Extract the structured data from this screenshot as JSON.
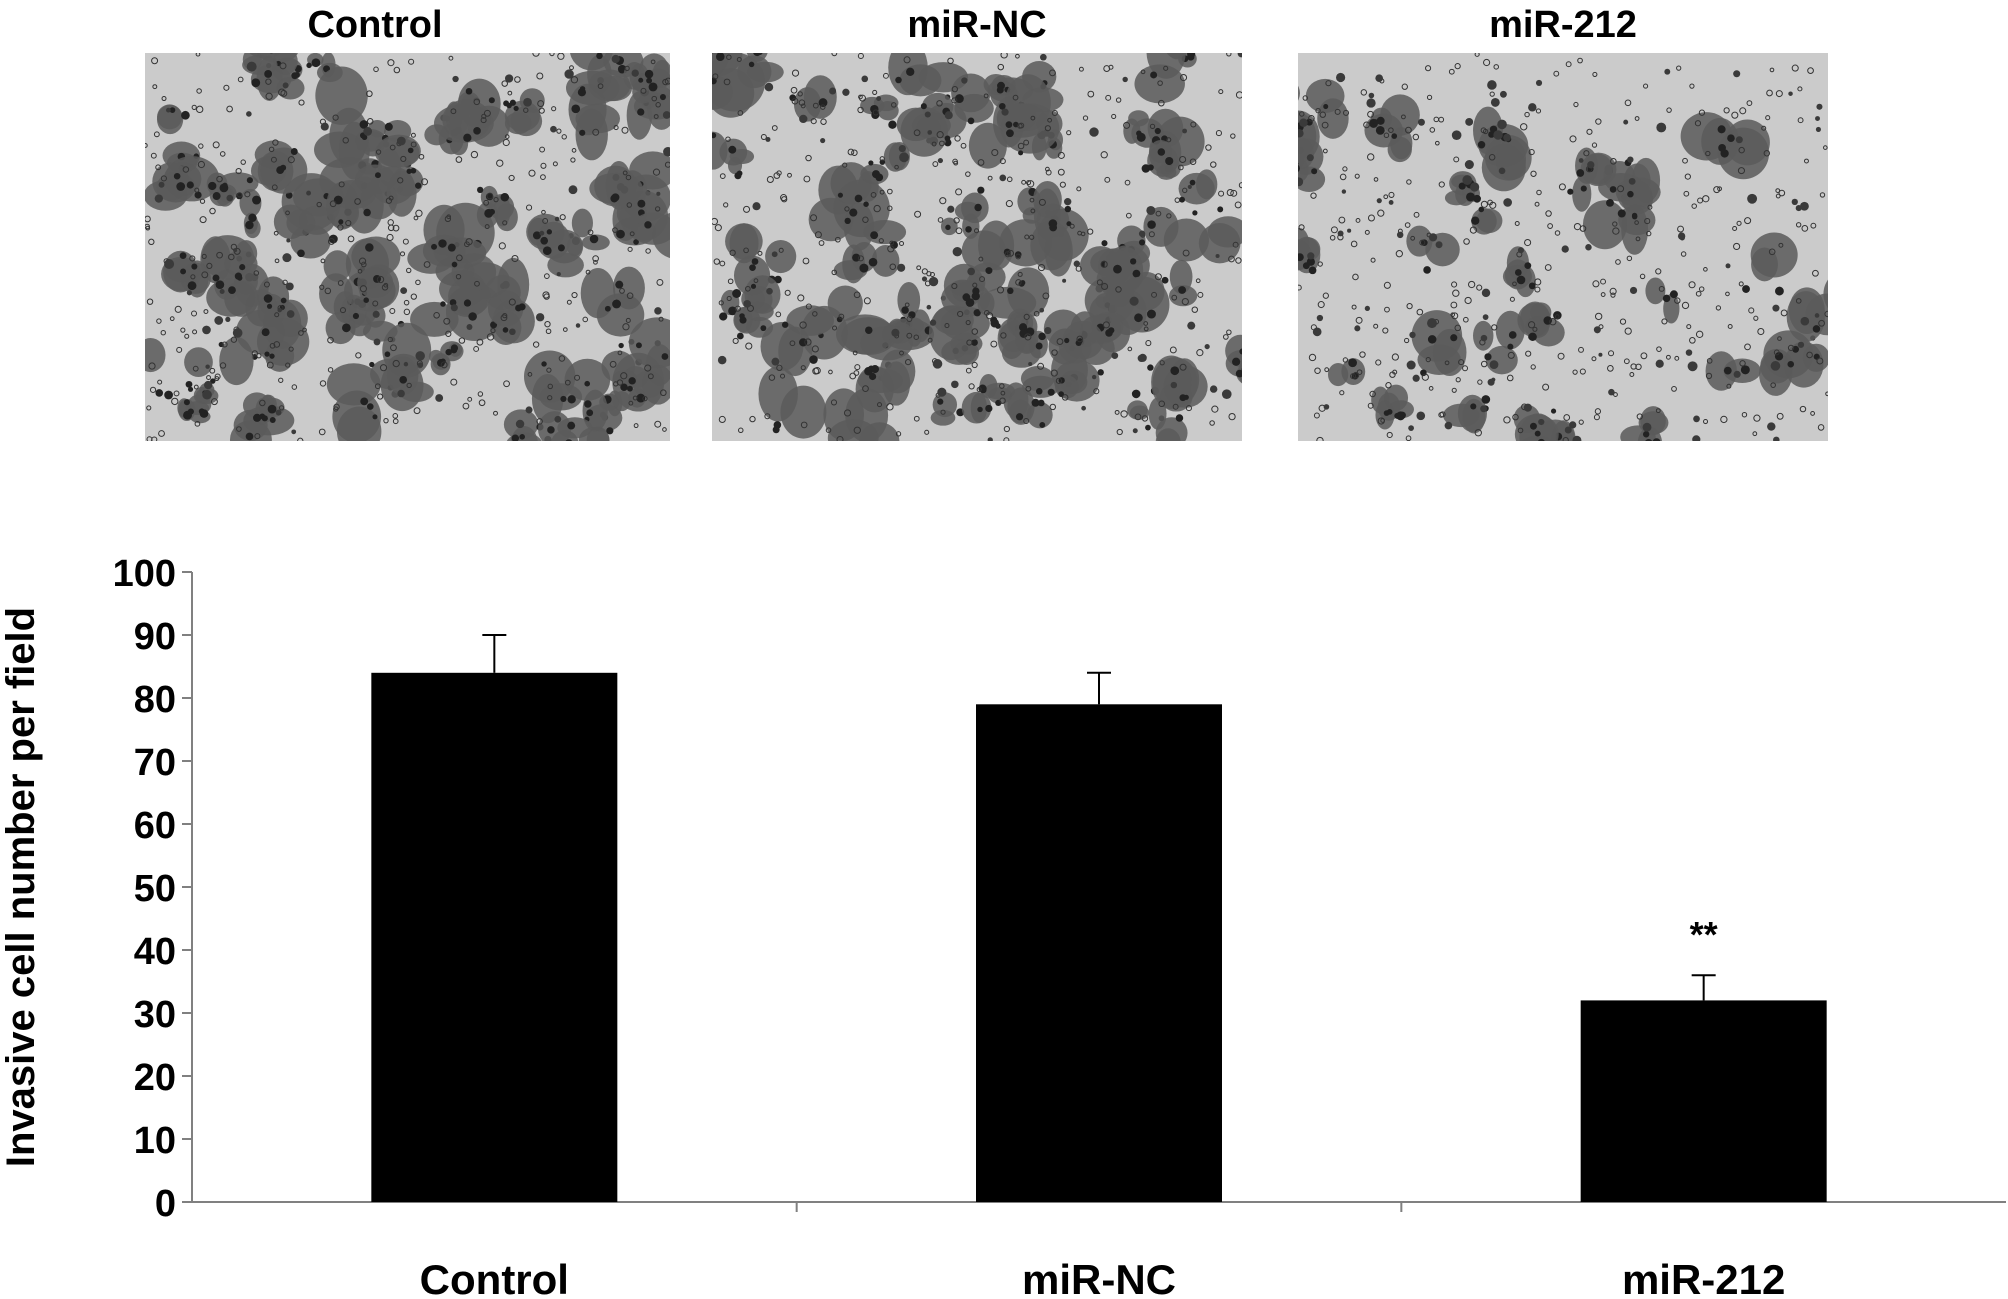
{
  "panels": [
    {
      "label": "Control",
      "density": 1.0
    },
    {
      "label": "miR-NC",
      "density": 0.95
    },
    {
      "label": "miR-212",
      "density": 0.38
    }
  ],
  "chart_data": {
    "type": "bar",
    "categories": [
      "Control",
      "miR-NC",
      "miR-212"
    ],
    "values": [
      84,
      79,
      32
    ],
    "errors": [
      6,
      5,
      4
    ],
    "annotations": [
      "",
      "",
      "**"
    ],
    "title": "",
    "xlabel": "",
    "ylabel": "Invasive cell number per field",
    "ylim": [
      0,
      100
    ],
    "yticks": [
      0,
      10,
      20,
      30,
      40,
      50,
      60,
      70,
      80,
      90,
      100
    ],
    "bar_color": "#000000",
    "grid": false,
    "legend": "none"
  }
}
